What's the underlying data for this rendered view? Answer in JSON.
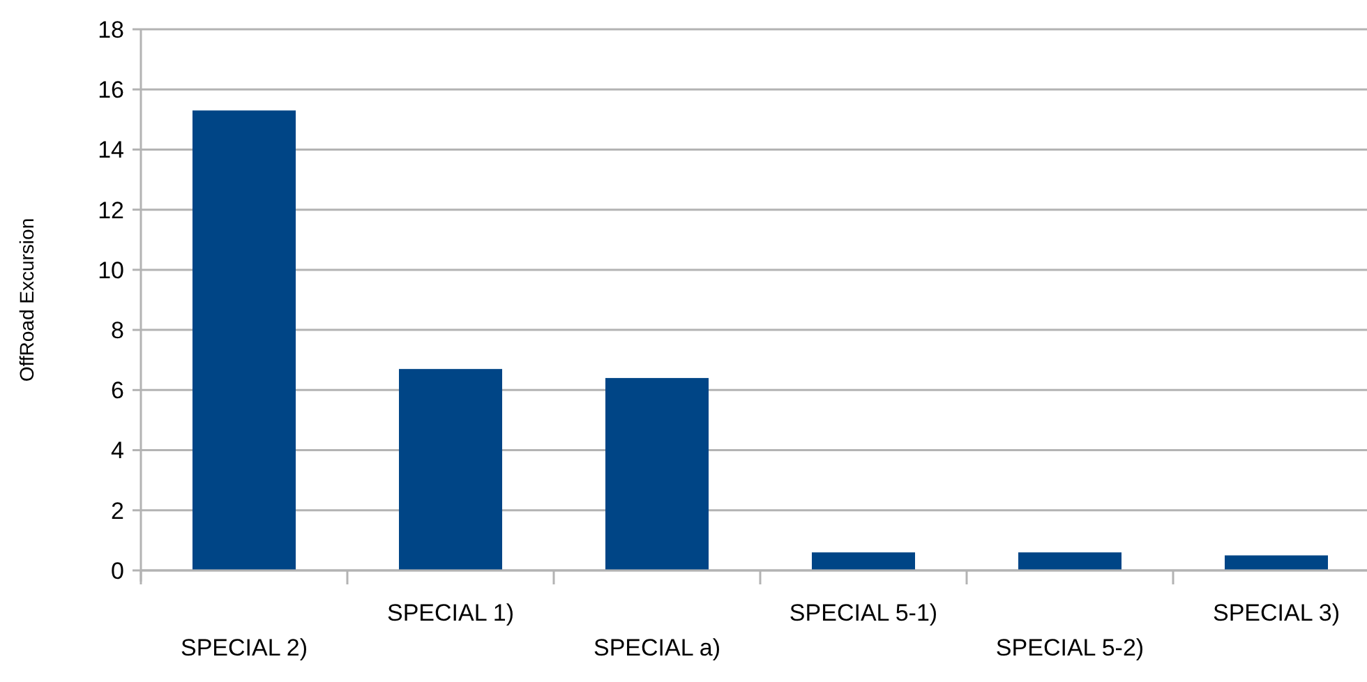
{
  "chart_data": {
    "type": "bar",
    "ylabel": "OffRoad Excursion",
    "categories": [
      "SPECIAL 2)",
      "SPECIAL 1)",
      "SPECIAL a)",
      "SPECIAL 5-1)",
      "SPECIAL 5-2)",
      "SPECIAL 3)"
    ],
    "values": [
      15.3,
      6.7,
      6.4,
      0.6,
      0.6,
      0.5
    ],
    "color": "#004586",
    "ylim": [
      0,
      18
    ],
    "yticks": [
      0,
      2,
      4,
      6,
      8,
      10,
      12,
      14,
      16,
      18
    ],
    "grid": "y"
  }
}
